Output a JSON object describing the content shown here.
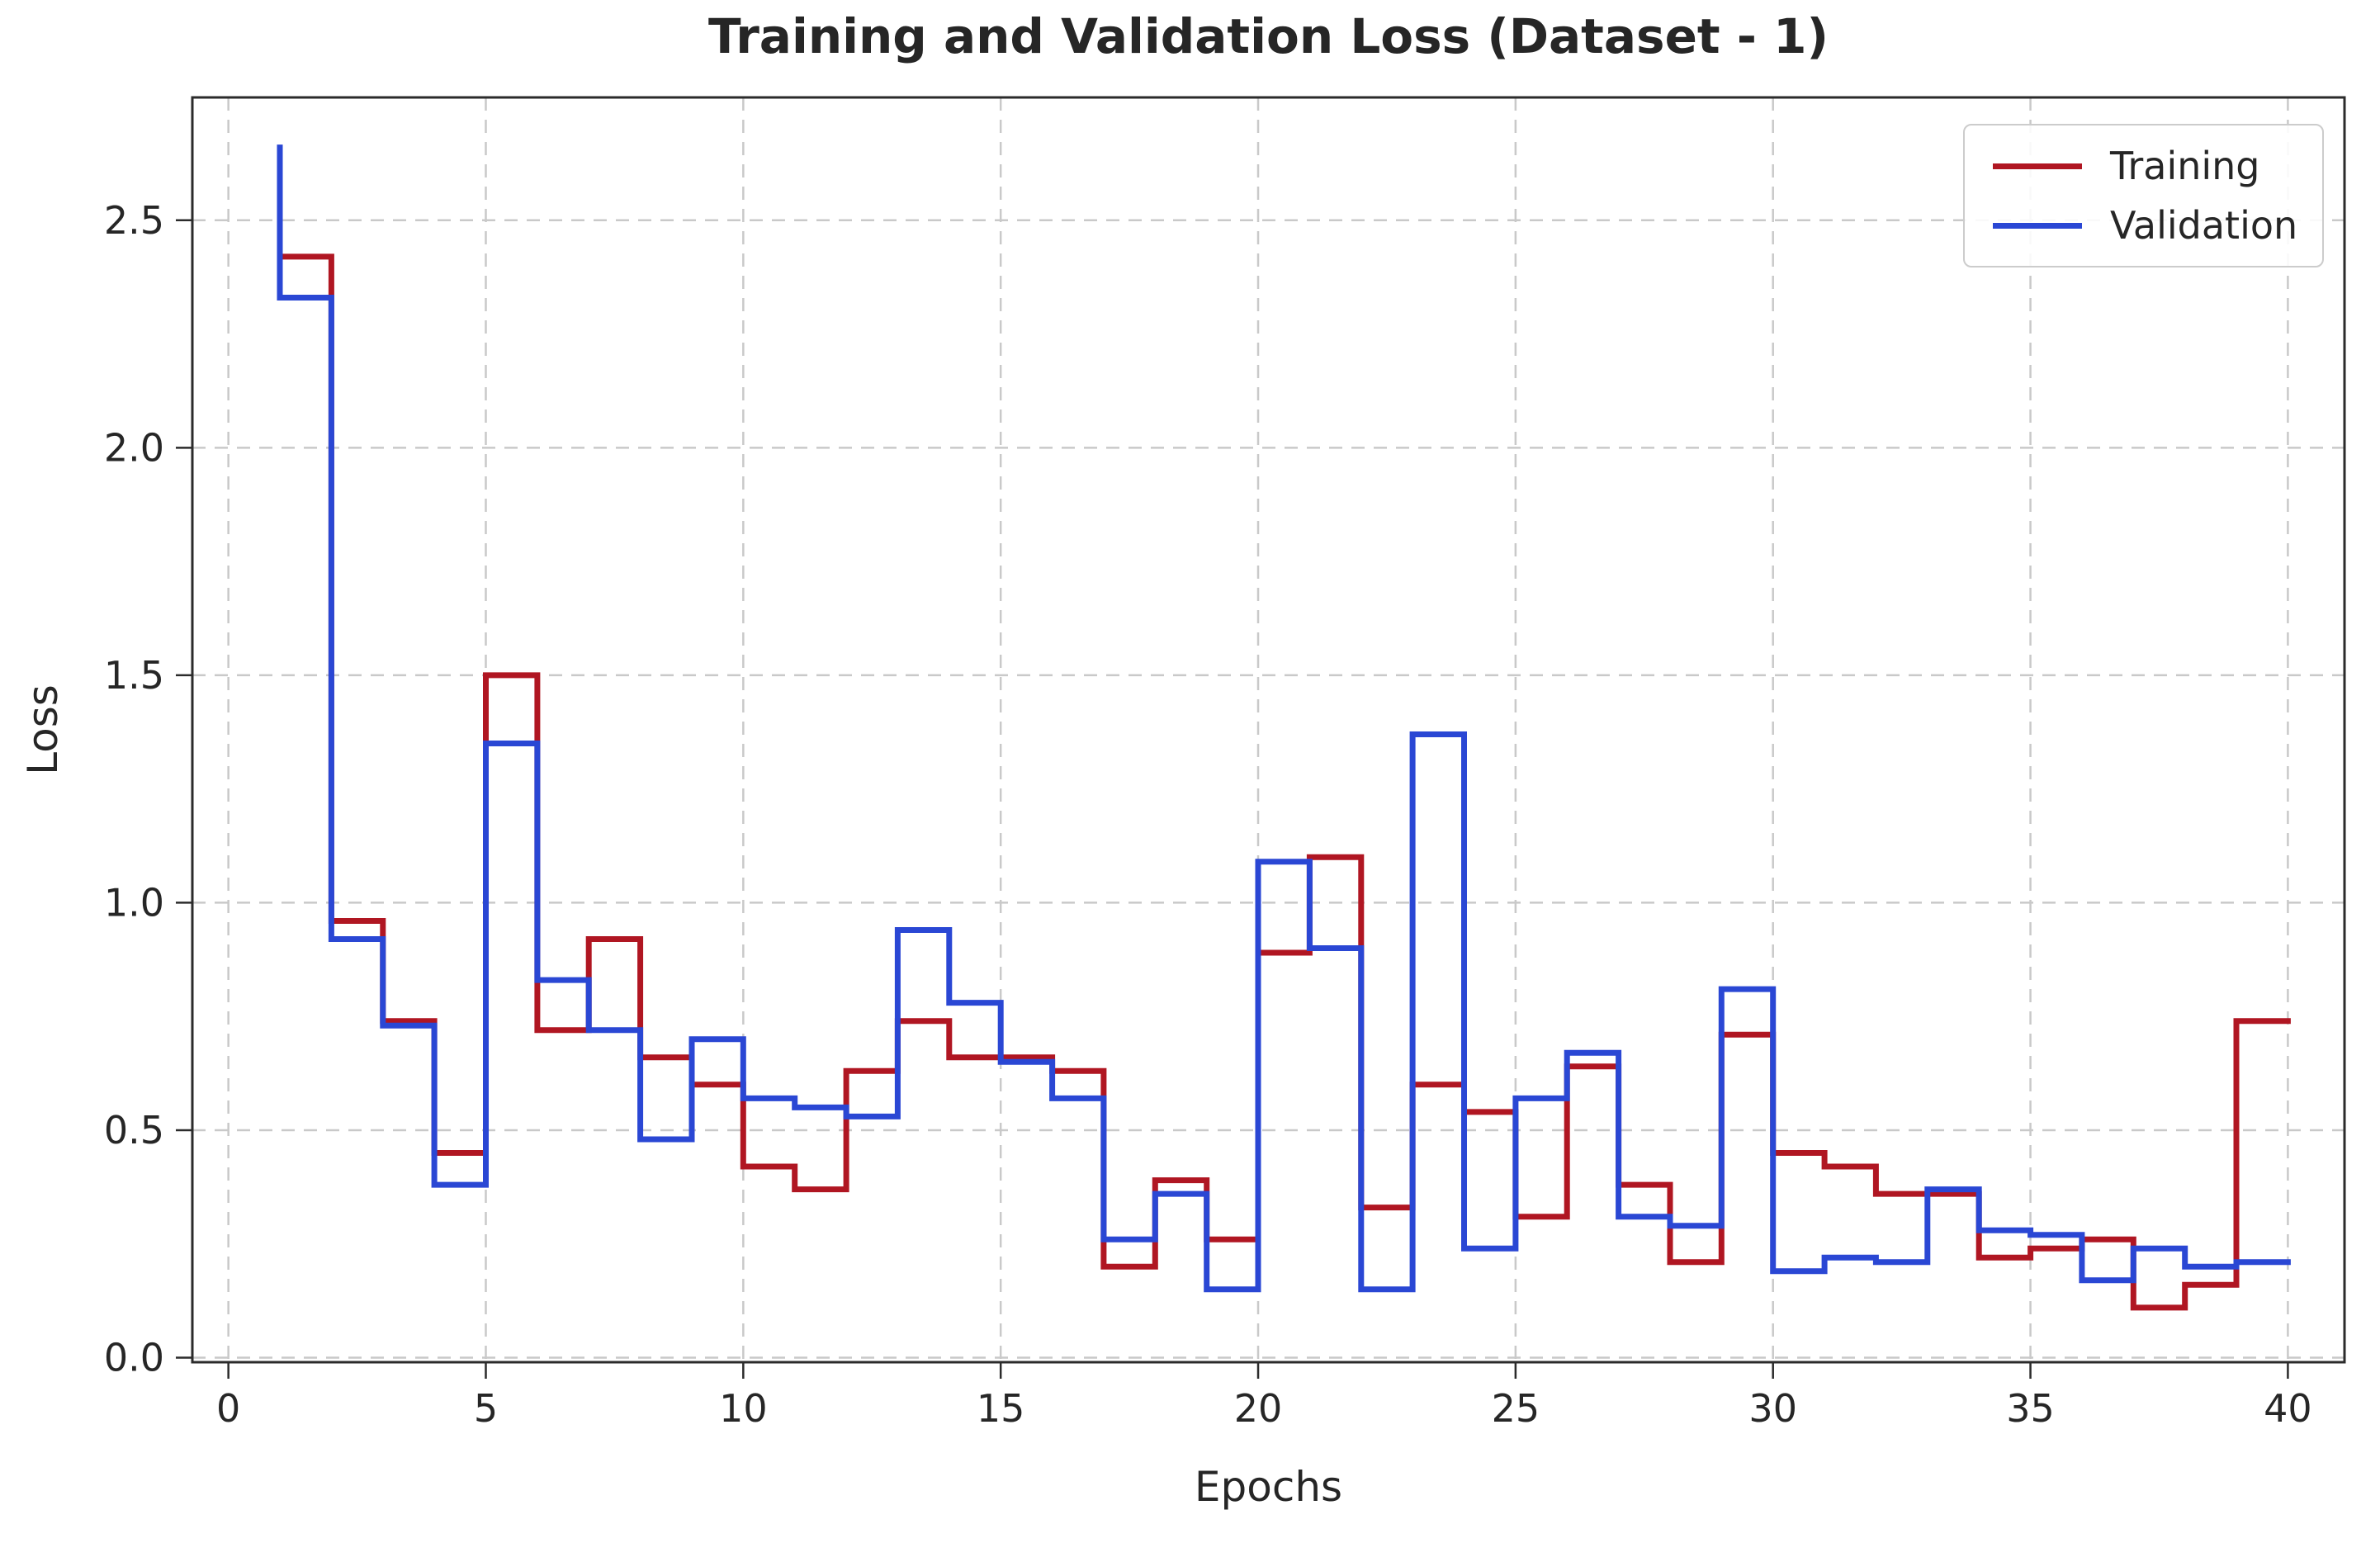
{
  "chart_data": {
    "type": "line",
    "step_style": "steps-pre",
    "title": "Training and Validation Loss (Dataset - 1)",
    "xlabel": "Epochs",
    "ylabel": "Loss",
    "x": [
      1,
      2,
      3,
      4,
      5,
      6,
      7,
      8,
      9,
      10,
      11,
      12,
      13,
      14,
      15,
      16,
      17,
      18,
      19,
      20,
      21,
      22,
      23,
      24,
      25,
      26,
      27,
      28,
      29,
      30,
      31,
      32,
      33,
      34,
      35,
      36,
      37,
      38,
      39,
      40
    ],
    "series": [
      {
        "name": "Training",
        "color": "#b01622",
        "values": [
          2.42,
          2.42,
          0.96,
          0.74,
          0.45,
          1.5,
          0.72,
          0.92,
          0.66,
          0.6,
          0.42,
          0.37,
          0.63,
          0.74,
          0.66,
          0.66,
          0.63,
          0.2,
          0.39,
          0.26,
          0.89,
          1.1,
          0.33,
          0.6,
          0.54,
          0.31,
          0.64,
          0.38,
          0.21,
          0.71,
          0.45,
          0.42,
          0.36,
          0.36,
          0.22,
          0.24,
          0.26,
          0.11,
          0.16,
          0.74
        ]
      },
      {
        "name": "Validation",
        "color": "#2a47d4",
        "values": [
          2.66,
          2.33,
          0.92,
          0.73,
          0.38,
          1.35,
          0.83,
          0.72,
          0.48,
          0.7,
          0.57,
          0.55,
          0.53,
          0.94,
          0.78,
          0.65,
          0.57,
          0.26,
          0.36,
          0.15,
          1.09,
          0.9,
          0.15,
          1.37,
          0.24,
          0.57,
          0.67,
          0.31,
          0.29,
          0.81,
          0.19,
          0.22,
          0.21,
          0.37,
          0.28,
          0.27,
          0.17,
          0.24,
          0.2,
          0.21
        ]
      }
    ],
    "xticks": [
      0,
      5,
      10,
      15,
      20,
      25,
      30,
      35,
      40
    ],
    "yticks": [
      "0.0",
      "0.5",
      "1.0",
      "1.5",
      "2.0",
      "2.5"
    ],
    "xlim": [
      -0.7,
      41.1
    ],
    "ylim": [
      -0.01,
      2.77
    ],
    "grid": true,
    "grid_style": "dashed",
    "legend_position": "upper right",
    "colors": {
      "grid": "#c9c9c9",
      "spine": "#2b2b2b",
      "text": "#262626",
      "background": "#ffffff"
    }
  }
}
